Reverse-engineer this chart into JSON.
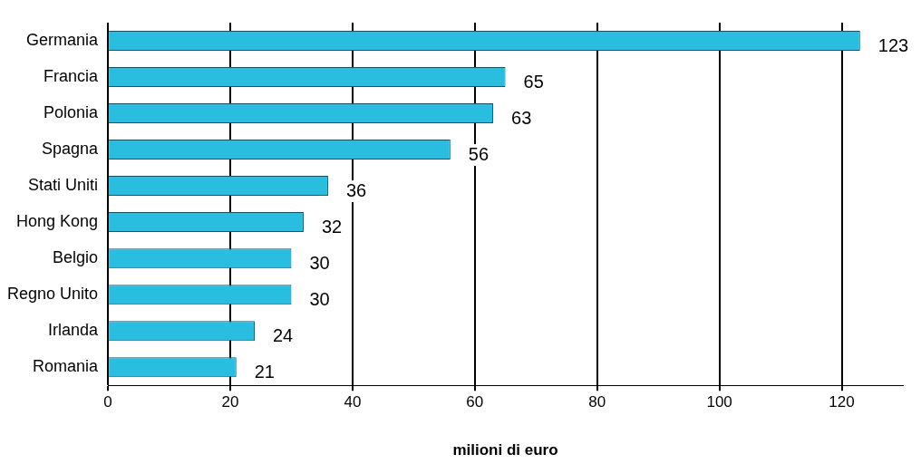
{
  "chart_data": {
    "type": "bar",
    "orientation": "horizontal",
    "xlabel": "milioni di euro",
    "categories": [
      "Germania",
      "Francia",
      "Polonia",
      "Spagna",
      "Stati Uniti",
      "Hong Kong",
      "Belgio",
      "Regno Unito",
      "Irlanda",
      "Romania"
    ],
    "values": [
      123,
      65,
      63,
      56,
      36,
      32,
      30,
      30,
      24,
      21
    ],
    "color": "#29bde0",
    "xlim": [
      0,
      130
    ],
    "xticks": [
      0,
      20,
      40,
      60,
      80,
      100,
      120
    ],
    "grid": "x",
    "legend": false,
    "data_labels": true
  }
}
